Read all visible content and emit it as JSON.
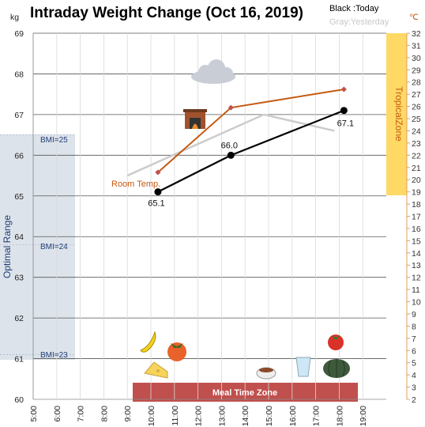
{
  "chart_data": {
    "type": "line",
    "title": "Intraday Weight Change (Oct 16, 2019)",
    "legend": {
      "today": "Black :Today",
      "yesterday": "Gray:Yesterday",
      "placement": "top-right"
    },
    "y_unit_left": "kg",
    "y_unit_right": "℃",
    "ylim": [
      60,
      69
    ],
    "yticks": [
      "69",
      "68",
      "67",
      "66",
      "65",
      "64",
      "63",
      "62",
      "61",
      "60"
    ],
    "y2lim": [
      2,
      32
    ],
    "y2ticks": [
      "32",
      "31",
      "30",
      "29",
      "28",
      "27",
      "26",
      "25",
      "24",
      "23",
      "22",
      "21",
      "20",
      "19",
      "18",
      "17",
      "16",
      "15",
      "14",
      "13",
      "12",
      "11",
      "10",
      "9",
      "8",
      "7",
      "6",
      "5",
      "4",
      "3",
      "2"
    ],
    "xlim": [
      5,
      20
    ],
    "xticks": [
      "5:00",
      "6:00",
      "7:00",
      "8:00",
      "9:00",
      "10:00",
      "11:00",
      "12:00",
      "13:00",
      "14:00",
      "15:00",
      "16:00",
      "17:00",
      "18:00",
      "19:00"
    ],
    "grid": true,
    "series": [
      {
        "name": "Today",
        "color": "#000000",
        "x": [
          10.3,
          13.4,
          18.2
        ],
        "values": [
          65.1,
          66.0,
          67.1
        ],
        "labels": [
          "65.1",
          "66.0",
          "67.1"
        ]
      },
      {
        "name": "Yesterday",
        "color": "#cccccc",
        "x": [
          9.0,
          14.8,
          17.8
        ],
        "values": [
          65.5,
          67.0,
          66.6
        ]
      },
      {
        "name": "Room Temp.",
        "color": "#c55a11",
        "axis": "right",
        "x": [
          10.3,
          13.4,
          18.2
        ],
        "values": [
          20.6,
          25.9,
          27.4
        ]
      }
    ],
    "annotations": {
      "optimal_range": {
        "label": "Optimal Range",
        "color": "#dde3ea"
      },
      "bmi_lines": [
        {
          "label": "BMI=25",
          "value": 66.5
        },
        {
          "label": "BMI=24",
          "value": 63.8
        },
        {
          "label": "BMI=23",
          "value": 61.1
        }
      ],
      "tropical_zone": {
        "label": "TropicalZone",
        "color": "#ffd966"
      },
      "meal_zone": {
        "label": "Meal Time Zone",
        "color": "#c0504d"
      },
      "room_temp_label": "Room Temp.",
      "icons": [
        "cloud-icon",
        "fireplace-icon",
        "banana-icon",
        "persimmon-icon",
        "cheese-icon",
        "soup-icon",
        "water-glass-icon",
        "tomato-icon",
        "pumpkin-icon"
      ]
    }
  }
}
